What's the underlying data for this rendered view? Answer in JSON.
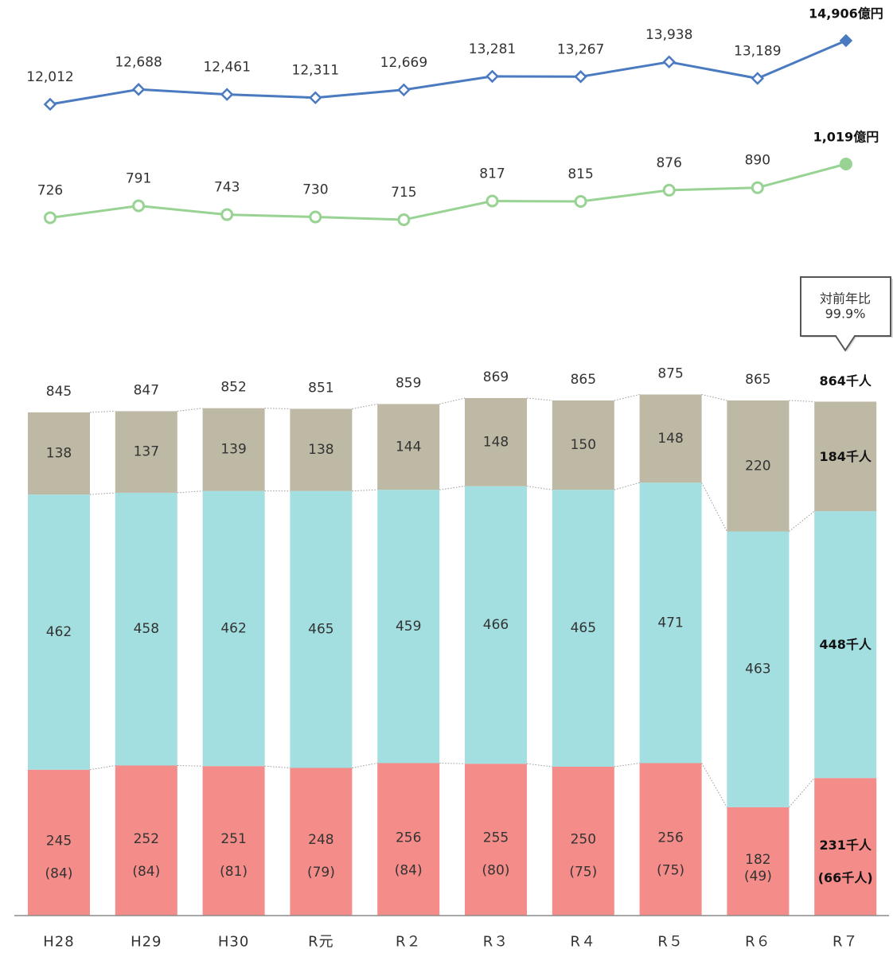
{
  "chart_data": {
    "type": "bar",
    "stacked": true,
    "grid": false,
    "categories": [
      "H28",
      "H29",
      "H30",
      "R元",
      "R２",
      "R３",
      "R４",
      "R５",
      "R６",
      "R７"
    ],
    "series": [
      {
        "values": [
          245,
          252,
          251,
          248,
          256,
          255,
          250,
          256,
          182,
          231
        ],
        "labels": [
          "245",
          "252",
          "251",
          "248",
          "256",
          "255",
          "250",
          "256",
          "182",
          "231千人"
        ],
        "sub_values": [
          84,
          84,
          81,
          79,
          84,
          80,
          75,
          75,
          49,
          66
        ],
        "sub_labels": [
          "(84)",
          "(84)",
          "(81)",
          "(79)",
          "(84)",
          "(80)",
          "(75)",
          "(75)",
          "(49)",
          "(66千人)"
        ],
        "color": "#F48D8A"
      },
      {
        "values": [
          462,
          458,
          462,
          465,
          459,
          466,
          465,
          471,
          463,
          448
        ],
        "labels": [
          "462",
          "458",
          "462",
          "465",
          "459",
          "466",
          "465",
          "471",
          "463",
          "448千人"
        ],
        "color": "#A3DFE0"
      },
      {
        "values": [
          138,
          137,
          139,
          138,
          144,
          148,
          150,
          148,
          220,
          184
        ],
        "labels": [
          "138",
          "137",
          "139",
          "138",
          "144",
          "148",
          "150",
          "148",
          "220",
          "184千人"
        ],
        "color": "#BDB9A4"
      }
    ],
    "totals": {
      "values": [
        845,
        847,
        852,
        851,
        859,
        869,
        865,
        875,
        865,
        864
      ],
      "labels": [
        "845",
        "847",
        "852",
        "851",
        "859",
        "869",
        "865",
        "875",
        "865",
        "864千人"
      ]
    },
    "line_series": [
      {
        "type": "line",
        "values": [
          12012,
          12688,
          12461,
          12311,
          12669,
          13281,
          13267,
          13938,
          13189,
          14906
        ],
        "labels": [
          "12,012",
          "12,688",
          "12,461",
          "12,311",
          "12,669",
          "13,281",
          "13,267",
          "13,938",
          "13,189",
          "14,906億円"
        ],
        "color": "#4A7AC0",
        "marker": "diamond"
      },
      {
        "type": "line",
        "values": [
          726,
          791,
          743,
          730,
          715,
          817,
          815,
          876,
          890,
          1019
        ],
        "labels": [
          "726",
          "791",
          "743",
          "730",
          "715",
          "817",
          "815",
          "876",
          "890",
          "1,019億円"
        ],
        "color": "#98D394",
        "marker": "circle"
      }
    ]
  },
  "callout": {
    "label": "対前年比",
    "value": "99.9%"
  }
}
